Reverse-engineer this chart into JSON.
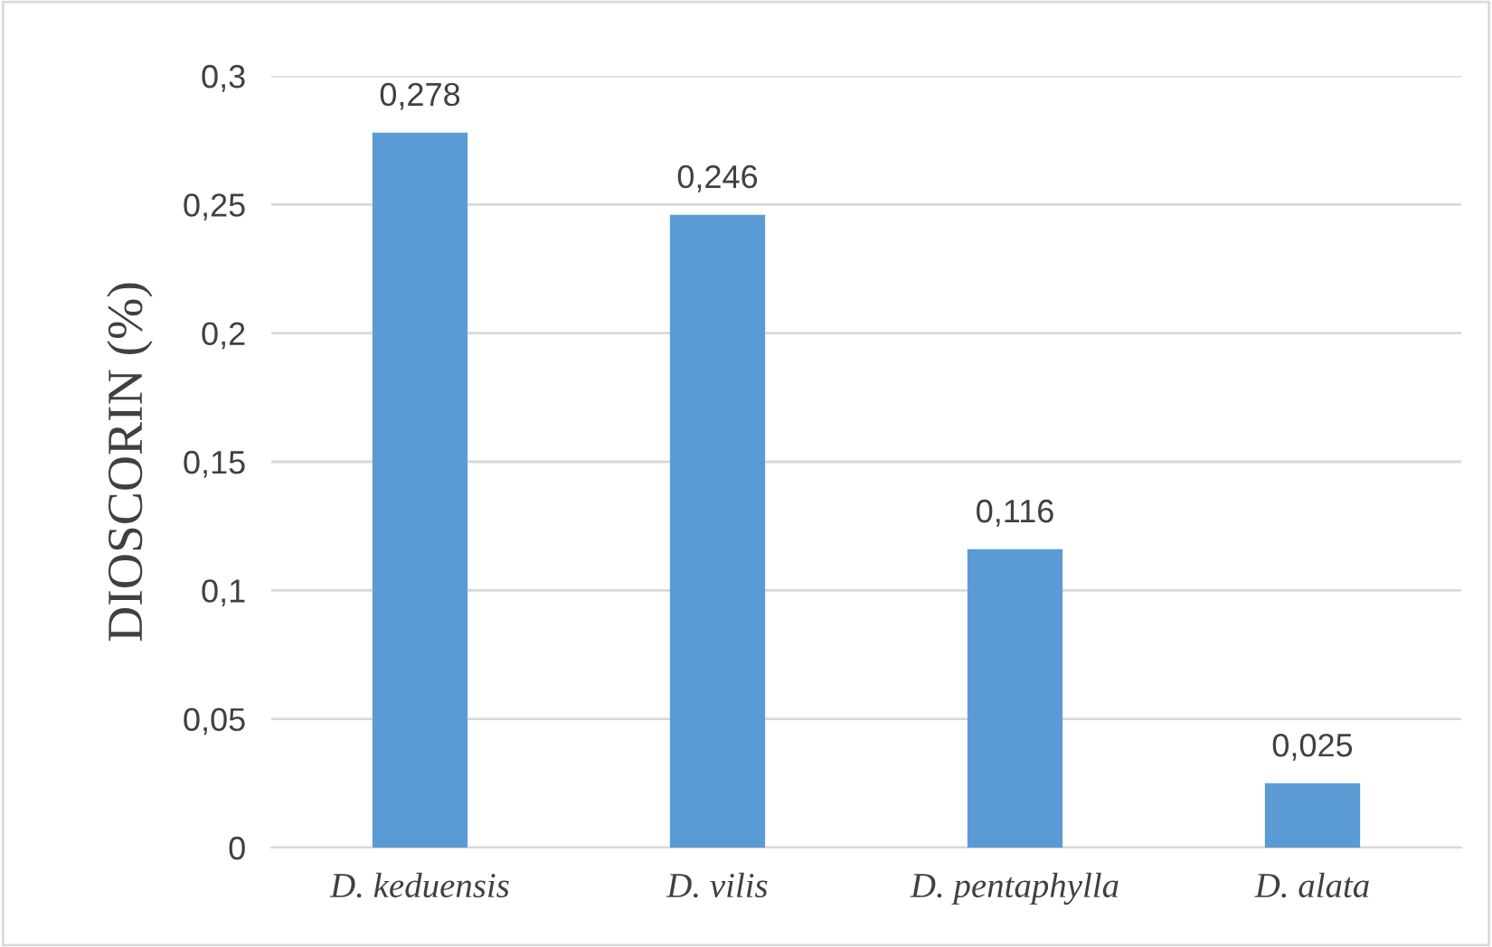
{
  "chart_data": {
    "type": "bar",
    "ylabel": "DIOSCORIN (%)",
    "categories": [
      "D. keduensis",
      "D. vilis",
      "D. pentaphylla",
      "D. alata"
    ],
    "values": [
      0.278,
      0.246,
      0.116,
      0.025
    ],
    "value_labels": [
      "0,278",
      "0,246",
      "0,116",
      "0,025"
    ],
    "color": "#5b9bd5",
    "ylim": [
      0,
      0.3
    ],
    "yticks": [
      {
        "value": 0,
        "label": "0"
      },
      {
        "value": 0.05,
        "label": "0,05"
      },
      {
        "value": 0.1,
        "label": "0,1"
      },
      {
        "value": 0.15,
        "label": "0,15"
      },
      {
        "value": 0.2,
        "label": "0,2"
      },
      {
        "value": 0.25,
        "label": "0,25"
      },
      {
        "value": 0.3,
        "label": "0,3"
      }
    ],
    "grid": "y"
  }
}
